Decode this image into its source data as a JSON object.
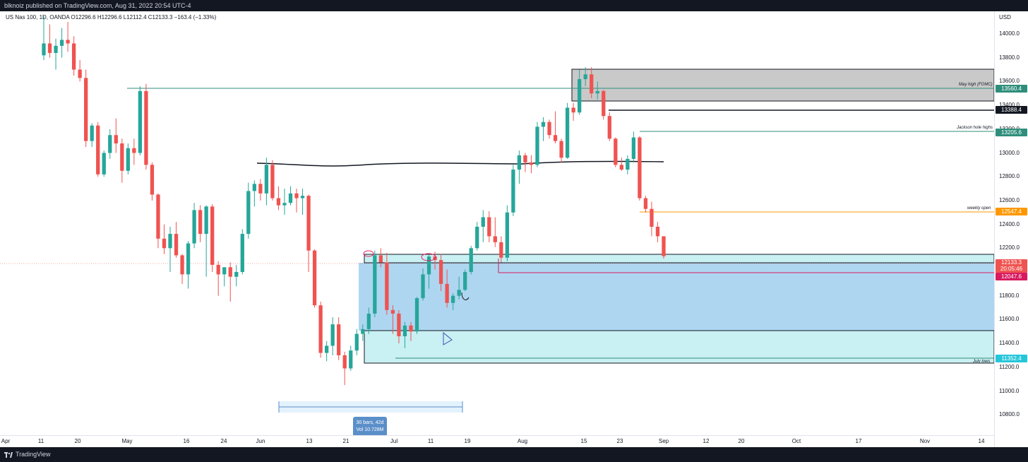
{
  "header": {
    "published": "blknoiz published on TradingView.com, Aug 31, 2022 20:54 UTC-4"
  },
  "legend": {
    "text": "US Nas 100, 1D, OANDA  O12296.6  H12296.6  L12112.4  C12133.3  −163.4 (−1.33%)"
  },
  "price_axis": {
    "currency": "USD",
    "ticks": [
      "14000.0",
      "13800.0",
      "13600.0",
      "13400.0",
      "13200.0",
      "13000.0",
      "12800.0",
      "12600.0",
      "12400.0",
      "12200.0",
      "12000.0",
      "11800.0",
      "11600.0",
      "11400.0",
      "11200.0",
      "11000.0",
      "10800.0"
    ]
  },
  "time_axis": {
    "ticks": [
      "Apr",
      "11",
      "20",
      "May",
      "16",
      "24",
      "Jun",
      "13",
      "21",
      "Jul",
      "11",
      "19",
      "Aug",
      "15",
      "23",
      "Sep",
      "12",
      "20",
      "Oct",
      "17",
      "Nov",
      "14"
    ]
  },
  "price_labels": {
    "may_high": "13560.4",
    "level_13388": "13388.4",
    "jackson_hole": "13205.6",
    "weekly_open": "12547.4",
    "current_price": "12133.3",
    "countdown": "20:05:46",
    "level_12047": "12047.6",
    "july_lows": "11352.4"
  },
  "annotations": {
    "may_high": "May high (FOMC)",
    "jackson_hole": "Jackson hole highs",
    "weekly_open": "weekly open",
    "july_lows": "July lows"
  },
  "measure": {
    "bars": "30 bars, 42d",
    "volume": "Vol 10.728M"
  },
  "footer": {
    "brand": "TradingView"
  },
  "colors": {
    "up": "#26a69a",
    "down": "#ef5350",
    "blue_zone": "#aed6f1",
    "cyan_zone": "#c9f0f2",
    "grey_zone": "#c9c9c9",
    "orange": "#ff9800",
    "teal": "#2f8e7b",
    "magenta": "#d81b60"
  },
  "chart_data": {
    "type": "candlestick",
    "instrument": "US Nas 100, 1D, OANDA",
    "ylim": [
      10700,
      14150
    ],
    "ohlc": [
      [
        13820,
        14150,
        13780,
        13920
      ],
      [
        13920,
        14080,
        13800,
        13840
      ],
      [
        13840,
        13960,
        13700,
        13900
      ],
      [
        13900,
        14050,
        13800,
        13950
      ],
      [
        13950,
        14100,
        13850,
        13920
      ],
      [
        13920,
        13980,
        13650,
        13700
      ],
      [
        13700,
        13780,
        13600,
        13630
      ],
      [
        13630,
        13700,
        13050,
        13100
      ],
      [
        13100,
        13250,
        13050,
        13230
      ],
      [
        13230,
        13260,
        12800,
        12820
      ],
      [
        12820,
        13020,
        12800,
        13000
      ],
      [
        13000,
        13200,
        12950,
        13150
      ],
      [
        13150,
        13290,
        13000,
        13080
      ],
      [
        13080,
        13120,
        12750,
        12850
      ],
      [
        12850,
        13080,
        12820,
        13040
      ],
      [
        13040,
        13120,
        12900,
        13000
      ],
      [
        13000,
        13560,
        12980,
        13520
      ],
      [
        13520,
        13580,
        12860,
        12900
      ],
      [
        12900,
        12920,
        12600,
        12650
      ],
      [
        12650,
        12660,
        12200,
        12280
      ],
      [
        12280,
        12400,
        12150,
        12200
      ],
      [
        12200,
        12380,
        12000,
        12320
      ],
      [
        12320,
        12420,
        12120,
        12140
      ],
      [
        12140,
        12150,
        11900,
        11980
      ],
      [
        11980,
        12260,
        11860,
        12240
      ],
      [
        12240,
        12580,
        12200,
        12520
      ],
      [
        12520,
        12560,
        12250,
        12320
      ],
      [
        12320,
        12560,
        11960,
        12550
      ],
      [
        12550,
        12570,
        12000,
        12060
      ],
      [
        12060,
        12090,
        11800,
        11980
      ],
      [
        11980,
        12020,
        11880,
        12040
      ],
      [
        12040,
        12080,
        11750,
        11960
      ],
      [
        11960,
        12060,
        11880,
        12000
      ],
      [
        12000,
        12360,
        11980,
        12320
      ],
      [
        12320,
        12750,
        12280,
        12680
      ],
      [
        12680,
        12770,
        12550,
        12740
      ],
      [
        12740,
        12780,
        12600,
        12660
      ],
      [
        12660,
        12960,
        12560,
        12900
      ],
      [
        12900,
        12940,
        12600,
        12620
      ],
      [
        12620,
        12720,
        12520,
        12560
      ],
      [
        12560,
        12700,
        12480,
        12580
      ],
      [
        12580,
        12720,
        12560,
        12660
      ],
      [
        12660,
        12700,
        12500,
        12620
      ],
      [
        12620,
        12700,
        12480,
        12640
      ],
      [
        12640,
        12650,
        12000,
        12180
      ],
      [
        12180,
        12190,
        11700,
        11720
      ],
      [
        11720,
        11750,
        11280,
        11320
      ],
      [
        11320,
        11420,
        11250,
        11380
      ],
      [
        11380,
        11620,
        11300,
        11560
      ],
      [
        11560,
        11620,
        11260,
        11300
      ],
      [
        11300,
        11330,
        11050,
        11190
      ],
      [
        11190,
        11380,
        11170,
        11340
      ],
      [
        11340,
        11520,
        11300,
        11480
      ],
      [
        11480,
        11560,
        11420,
        11520
      ],
      [
        11520,
        11700,
        11480,
        11650
      ],
      [
        11650,
        12180,
        11620,
        12140
      ],
      [
        12140,
        12200,
        12040,
        12080
      ],
      [
        12080,
        12160,
        11640,
        11680
      ],
      [
        11680,
        11720,
        11480,
        11650
      ],
      [
        11650,
        11680,
        11400,
        11460
      ],
      [
        11460,
        11580,
        11360,
        11550
      ],
      [
        11550,
        11580,
        11420,
        11500
      ],
      [
        11500,
        11790,
        11480,
        11780
      ],
      [
        11780,
        12030,
        11760,
        11980
      ],
      [
        11980,
        12150,
        11860,
        12130
      ],
      [
        12130,
        12170,
        12020,
        12100
      ],
      [
        12100,
        12150,
        11840,
        11900
      ],
      [
        11900,
        12020,
        11700,
        11740
      ],
      [
        11740,
        11820,
        11680,
        11800
      ],
      [
        11800,
        11960,
        11770,
        11850
      ],
      [
        11850,
        12020,
        11840,
        12000
      ],
      [
        12000,
        12220,
        11980,
        12200
      ],
      [
        12200,
        12420,
        12180,
        12380
      ],
      [
        12380,
        12520,
        12250,
        12460
      ],
      [
        12460,
        12510,
        12250,
        12300
      ],
      [
        12300,
        12460,
        12210,
        12250
      ],
      [
        12250,
        12300,
        12080,
        12120
      ],
      [
        12120,
        12560,
        12090,
        12500
      ],
      [
        12500,
        12900,
        12470,
        12860
      ],
      [
        12860,
        13020,
        12740,
        12980
      ],
      [
        12980,
        13000,
        12840,
        12920
      ],
      [
        12920,
        12980,
        12830,
        12900
      ],
      [
        12900,
        13260,
        12880,
        13220
      ],
      [
        13220,
        13300,
        13100,
        13260
      ],
      [
        13260,
        13280,
        13120,
        13150
      ],
      [
        13150,
        13350,
        13080,
        13100
      ],
      [
        13100,
        13120,
        12920,
        12960
      ],
      [
        12960,
        13420,
        12950,
        13380
      ],
      [
        13380,
        13420,
        13270,
        13340
      ],
      [
        13340,
        13700,
        13320,
        13620
      ],
      [
        13620,
        13720,
        13560,
        13660
      ],
      [
        13660,
        13720,
        13460,
        13500
      ],
      [
        13500,
        13600,
        13450,
        13520
      ],
      [
        13520,
        13530,
        13280,
        13310
      ],
      [
        13310,
        13340,
        13100,
        13120
      ],
      [
        13120,
        13130,
        12880,
        12900
      ],
      [
        12900,
        12960,
        12850,
        12860
      ],
      [
        12860,
        12980,
        12820,
        12950
      ],
      [
        12950,
        13180,
        12920,
        13130
      ],
      [
        13130,
        13140,
        12600,
        12620
      ],
      [
        12620,
        12640,
        12500,
        12530
      ],
      [
        12530,
        12590,
        12300,
        12380
      ],
      [
        12380,
        12420,
        12250,
        12300
      ],
      [
        12300,
        12297,
        12112,
        12133
      ]
    ],
    "levels": [
      {
        "name": "May high (FOMC)",
        "price": 13560.4
      },
      {
        "name": "",
        "price": 13388.4
      },
      {
        "name": "Jackson hole highs",
        "price": 13205.6
      },
      {
        "name": "weekly open",
        "price": 12547.4
      },
      {
        "name": "",
        "price": 12047.6
      },
      {
        "name": "July lows",
        "price": 11352.4
      }
    ]
  }
}
